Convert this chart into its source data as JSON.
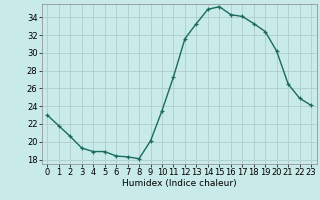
{
  "x": [
    0,
    1,
    2,
    3,
    4,
    5,
    6,
    7,
    8,
    9,
    10,
    11,
    12,
    13,
    14,
    15,
    16,
    17,
    18,
    19,
    20,
    21,
    22,
    23
  ],
  "y": [
    23,
    21.8,
    20.6,
    19.3,
    18.9,
    18.9,
    18.4,
    18.3,
    18.1,
    20.1,
    23.5,
    27.3,
    31.6,
    33.3,
    34.9,
    35.2,
    34.3,
    34.1,
    33.3,
    32.4,
    30.2,
    26.5,
    24.9,
    24.1
  ],
  "line_color": "#1a6b5e",
  "marker": "+",
  "bg_color": "#c8eae8",
  "grid_color": "#b0ceca",
  "xlabel": "Humidex (Indice chaleur)",
  "xlim": [
    -0.5,
    23.5
  ],
  "ylim": [
    17.5,
    35.5
  ],
  "yticks": [
    18,
    20,
    22,
    24,
    26,
    28,
    30,
    32,
    34
  ],
  "xticks": [
    0,
    1,
    2,
    3,
    4,
    5,
    6,
    7,
    8,
    9,
    10,
    11,
    12,
    13,
    14,
    15,
    16,
    17,
    18,
    19,
    20,
    21,
    22,
    23
  ],
  "xlabel_fontsize": 6.5,
  "tick_fontsize": 6.0,
  "linewidth": 1.0,
  "markersize": 3.5,
  "markeredgewidth": 0.9
}
